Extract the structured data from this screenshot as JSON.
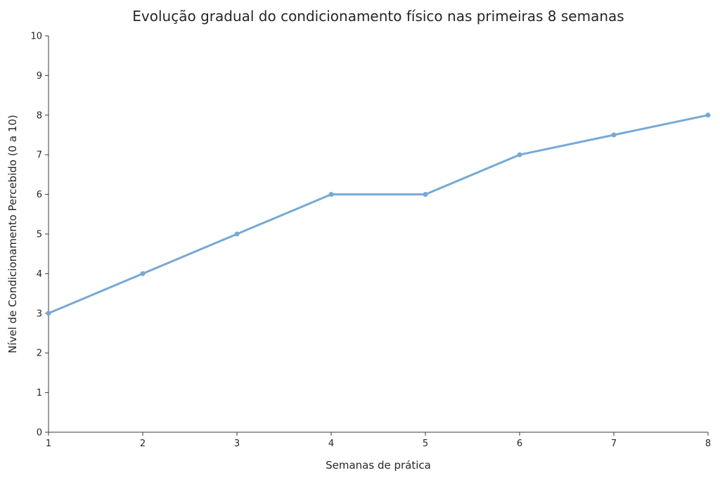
{
  "chart_data": {
    "type": "line",
    "title": "Evolução gradual do condicionamento físico nas primeiras 8 semanas",
    "xlabel": "Semanas de prática",
    "ylabel": "Nível de Condicionamento Percebido (0 a 10)",
    "x": [
      1,
      2,
      3,
      4,
      5,
      6,
      7,
      8
    ],
    "series": [
      {
        "values": [
          3,
          4,
          5,
          6,
          6,
          7,
          7.5,
          8
        ],
        "color": "#76a9d6"
      }
    ],
    "xlim": [
      1,
      8
    ],
    "ylim": [
      0,
      10
    ],
    "xticks": [
      "1",
      "2",
      "3",
      "4",
      "5",
      "6",
      "7",
      "8"
    ],
    "yticks": [
      "0",
      "1",
      "2",
      "3",
      "4",
      "5",
      "6",
      "7",
      "8",
      "9",
      "10"
    ],
    "grid": false,
    "legend": "none"
  }
}
